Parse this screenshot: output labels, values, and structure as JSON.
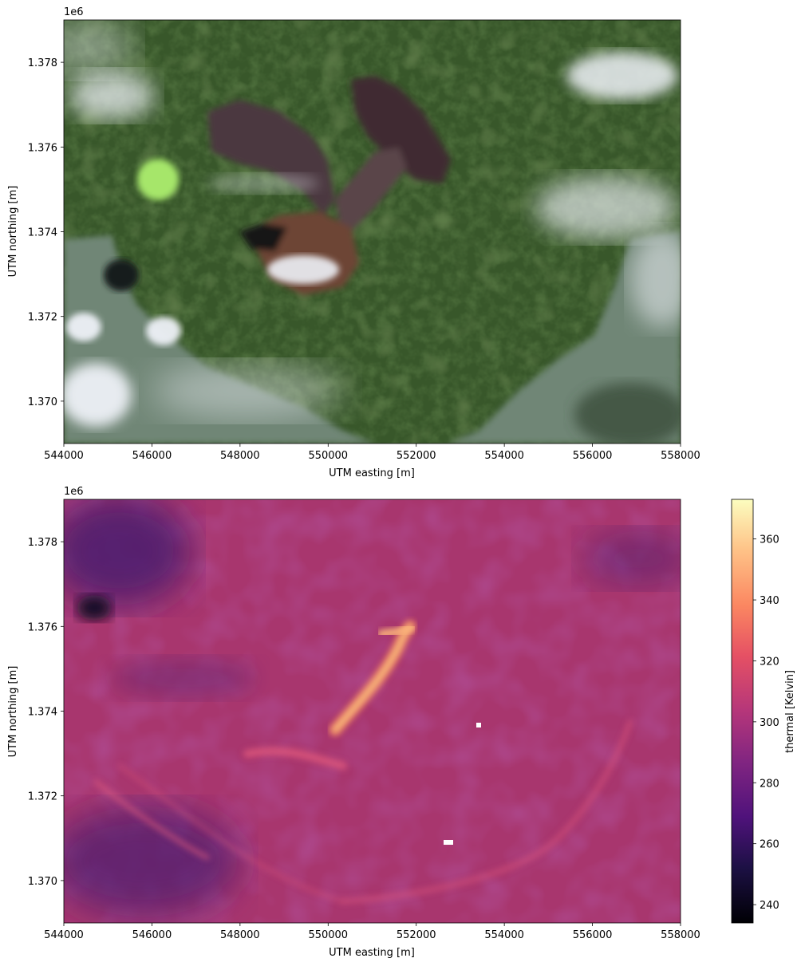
{
  "chart_data": [
    {
      "type": "image",
      "title": "",
      "xlabel": "UTM easting [m]",
      "ylabel": "UTM northing [m]",
      "y_offset_label": "1e6",
      "xlim": [
        544000,
        558000
      ],
      "ylim": [
        1369000,
        1379000
      ],
      "x_ticks": [
        "544000",
        "546000",
        "548000",
        "550000",
        "552000",
        "554000",
        "556000",
        "558000"
      ],
      "y_ticks": [
        "1.370",
        "1.372",
        "1.374",
        "1.376",
        "1.378"
      ],
      "content": "true-color satellite composite",
      "grid": false
    },
    {
      "type": "heatmap",
      "title": "",
      "xlabel": "UTM easting [m]",
      "ylabel": "UTM northing [m]",
      "y_offset_label": "1e6",
      "xlim": [
        544000,
        558000
      ],
      "ylim": [
        1369000,
        1379000
      ],
      "x_ticks": [
        "544000",
        "546000",
        "548000",
        "550000",
        "552000",
        "554000",
        "556000",
        "558000"
      ],
      "y_ticks": [
        "1.370",
        "1.372",
        "1.374",
        "1.376",
        "1.378"
      ],
      "colormap": "magma",
      "colorbar": {
        "label": "thermal [Kelvin]",
        "range": [
          234,
          373
        ],
        "ticks": [
          "240",
          "260",
          "280",
          "300",
          "320",
          "340",
          "360"
        ]
      },
      "grid": false
    }
  ],
  "colors": {
    "vegetation": "#3c5a2a",
    "lava_flow": "#4a3238",
    "water": "#6f8676",
    "cloud": "#e8ecf3",
    "thermal_background": "#a8366e",
    "thermal_hot": "#fdc77f"
  }
}
